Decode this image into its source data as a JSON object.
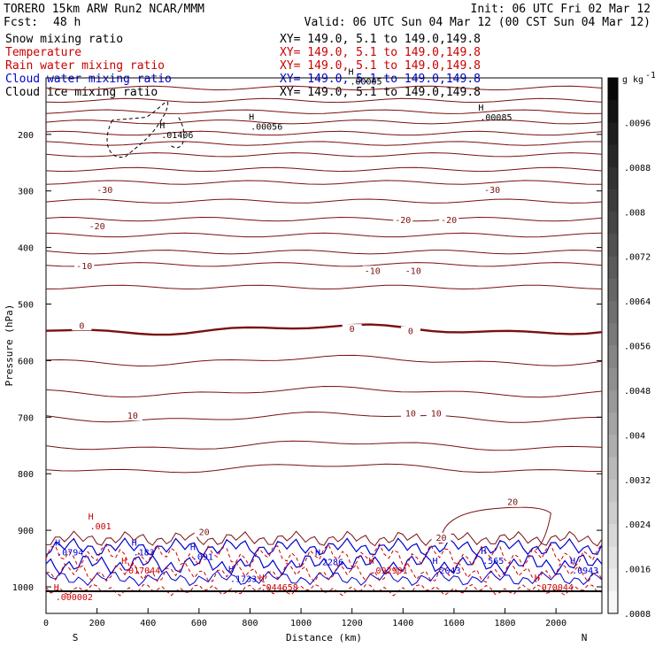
{
  "header": {
    "model": "TORERO  15km ARW   Run2    NCAR/MMM",
    "init": "Init: 06 UTC Fri 02 Mar 12",
    "fcst_label": "Fcst:",
    "fcst_value": "48 h",
    "valid": "Valid: 06 UTC Sun 04 Mar 12 (00 CST Sun 04 Mar 12)"
  },
  "legend": [
    {
      "name": "Snow mixing ratio",
      "xy": "XY= 149.0,   5.1 to 149.0,149.8",
      "color": "#000000"
    },
    {
      "name": "Temperature",
      "xy": "XY= 149.0,   5.1 to 149.0,149.8",
      "color": "#cc0000"
    },
    {
      "name": "Rain water mixing ratio",
      "xy": "XY= 149.0,   5.1 to 149.0,149.8",
      "color": "#cc0000"
    },
    {
      "name": "Cloud water mixing ratio",
      "xy": "XY= 149.0,   5.1 to 149.0,149.8",
      "color": "#0000cc"
    },
    {
      "name": "Cloud ice mixing ratio",
      "xy": "XY= 149.0,   5.1 to 149.0,149.8",
      "color": "#000000"
    }
  ],
  "chart_data": {
    "type": "contour_cross_section",
    "xlabel": "Distance (km)",
    "ylabel": "Pressure (hPa)",
    "xlim": [
      0,
      2180
    ],
    "ylim": [
      1050,
      100
    ],
    "x_ticks": [
      0,
      200,
      400,
      600,
      800,
      1000,
      1200,
      1400,
      1600,
      1800,
      2000
    ],
    "y_ticks": [
      200,
      300,
      400,
      500,
      600,
      700,
      800,
      900,
      1000
    ],
    "endpoints": {
      "left": "S",
      "right": "N"
    },
    "temperature_contours_C": [
      -50,
      -45,
      -40,
      -35,
      -30,
      -25,
      -20,
      -15,
      -10,
      -5,
      0,
      5,
      10,
      15,
      20
    ],
    "temperature_labels": [
      {
        "text": "-30",
        "x": 230,
        "p": 302
      },
      {
        "text": "-30",
        "x": 1750,
        "p": 302
      },
      {
        "text": "-20",
        "x": 200,
        "p": 366
      },
      {
        "text": "-20",
        "x": 1400,
        "p": 355
      },
      {
        "text": "-20",
        "x": 1580,
        "p": 355
      },
      {
        "text": "-10",
        "x": 150,
        "p": 437
      },
      {
        "text": "-10",
        "x": 1280,
        "p": 445
      },
      {
        "text": "-10",
        "x": 1440,
        "p": 445
      },
      {
        "text": "0",
        "x": 140,
        "p": 542
      },
      {
        "text": "0",
        "x": 1200,
        "p": 548
      },
      {
        "text": "0",
        "x": 1430,
        "p": 552
      },
      {
        "text": "10",
        "x": 340,
        "p": 701
      },
      {
        "text": "10",
        "x": 1430,
        "p": 697
      },
      {
        "text": "10",
        "x": 1530,
        "p": 697
      },
      {
        "text": "20",
        "x": 620,
        "p": 907
      },
      {
        "text": "20",
        "x": 1550,
        "p": 917
      },
      {
        "text": "20",
        "x": 1830,
        "p": 854
      }
    ],
    "maxima_labels": [
      {
        "text": ".01406",
        "x": 480,
        "p": 205,
        "color": "#000000"
      },
      {
        "text": ".00056",
        "x": 830,
        "p": 190,
        "color": "#000000"
      },
      {
        "text": ".00005",
        "x": 1220,
        "p": 110,
        "color": "#000000"
      },
      {
        "text": ".00085",
        "x": 1730,
        "p": 174,
        "color": "#000000"
      },
      {
        "text": ".001",
        "x": 200,
        "p": 897,
        "color": "#cc0000"
      },
      {
        "text": ".0794",
        "x": 70,
        "p": 943,
        "color": "#0000cc"
      },
      {
        "text": ".183",
        "x": 370,
        "p": 943,
        "color": "#0000cc"
      },
      {
        "text": ".017044",
        "x": 330,
        "p": 975,
        "color": "#cc0000"
      },
      {
        "text": ".091",
        "x": 600,
        "p": 951,
        "color": "#0000cc"
      },
      {
        "text": ".1733",
        "x": 750,
        "p": 990,
        "color": "#0000cc"
      },
      {
        "text": ".044658",
        "x": 870,
        "p": 1005,
        "color": "#cc0000"
      },
      {
        "text": ".2286",
        "x": 1090,
        "p": 960,
        "color": "#0000cc"
      },
      {
        "text": ".092901",
        "x": 1300,
        "p": 975,
        "color": "#cc0000"
      },
      {
        "text": ".2043",
        "x": 1550,
        "p": 975,
        "color": "#0000cc"
      },
      {
        "text": ".565",
        "x": 1740,
        "p": 958,
        "color": "#0000cc"
      },
      {
        "text": ".070044",
        "x": 1950,
        "p": 1005,
        "color": "#cc0000"
      },
      {
        "text": ".0943",
        "x": 2090,
        "p": 975,
        "color": "#0000cc"
      },
      {
        "text": ".000002",
        "x": 65,
        "p": 1022,
        "color": "#cc0000"
      }
    ]
  },
  "colorbar": {
    "unit": "g kg",
    "unit_exp": "-1",
    "ticks": [
      ".0096",
      ".0088",
      ".008",
      ".0072",
      ".0064",
      ".0056",
      ".0048",
      ".004",
      ".0032",
      ".0024",
      ".0016",
      ".0008"
    ]
  }
}
